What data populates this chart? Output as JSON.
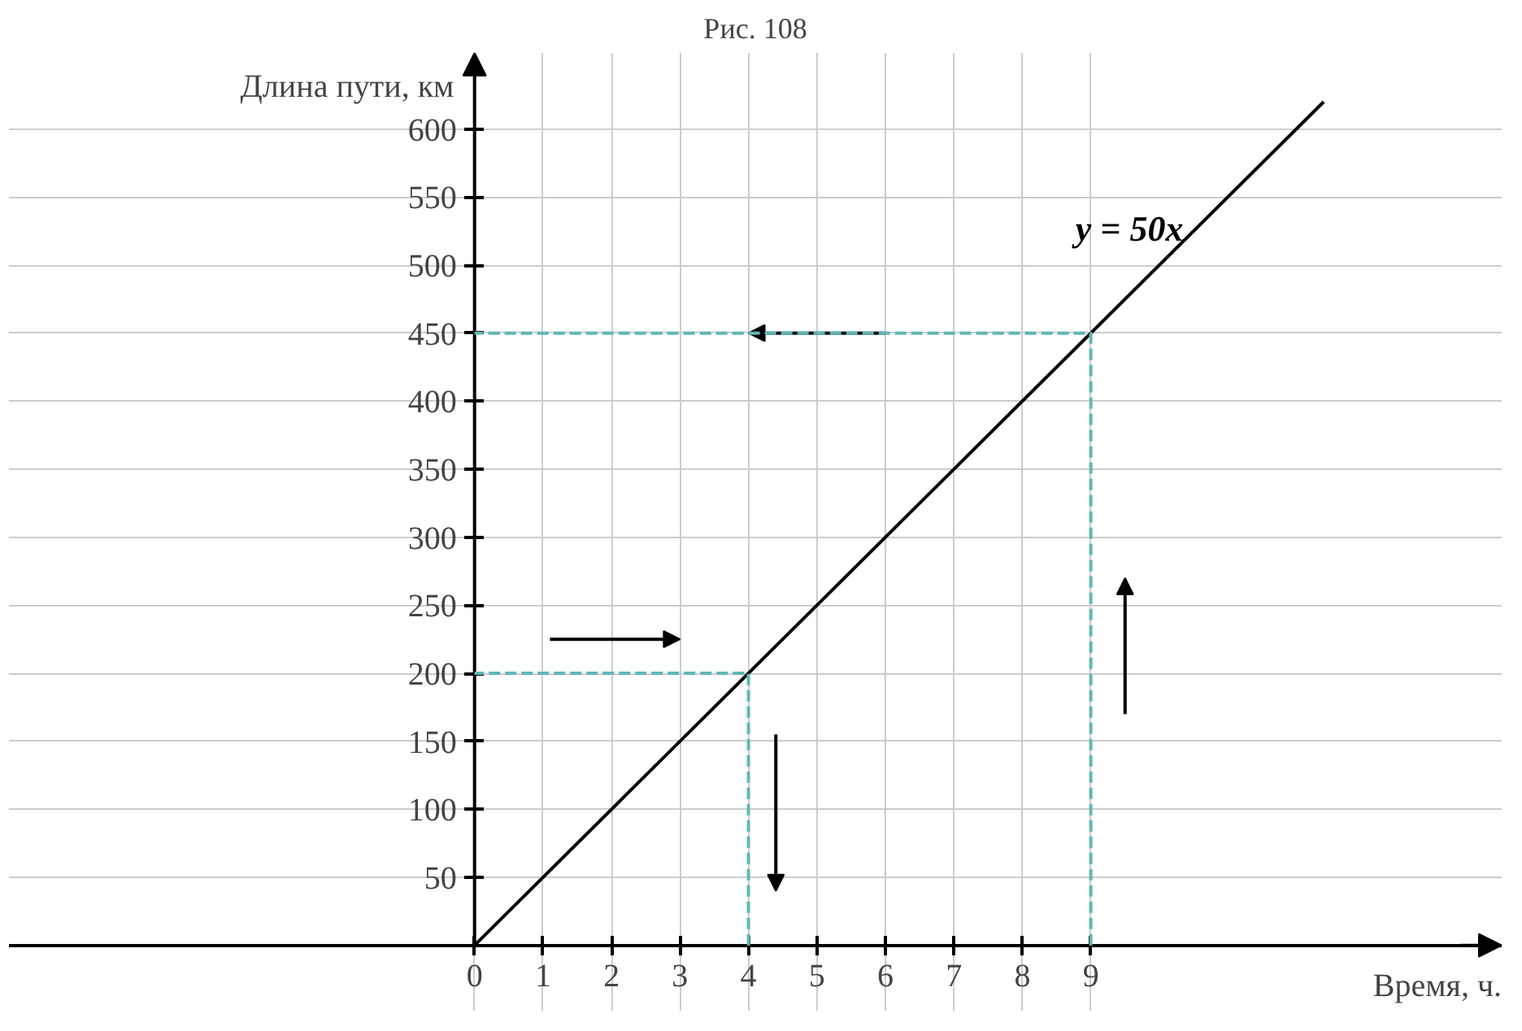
{
  "chart_data": {
    "type": "line",
    "title": "Рис. 108",
    "xlabel": "Время, ч.",
    "ylabel": "Длина пути, км",
    "xlim": [
      -6.8,
      15
    ],
    "ylim": [
      -48,
      656
    ],
    "xticks": [
      0,
      1,
      2,
      3,
      4,
      5,
      6,
      7,
      8,
      9
    ],
    "yticks": [
      50,
      100,
      150,
      200,
      250,
      300,
      350,
      400,
      450,
      500,
      550,
      600
    ],
    "grid": true,
    "series": [
      {
        "name": "y = 50x",
        "color": "#000000",
        "x": [
          0,
          12.4
        ],
        "values": [
          0,
          620
        ],
        "line_style": "solid"
      },
      {
        "color": "#5fb8b5",
        "x": [
          0,
          9,
          9
        ],
        "values": [
          450,
          450,
          0
        ],
        "line_style": "dashed"
      },
      {
        "color": "#5fb8b5",
        "x": [
          0,
          4,
          4
        ],
        "values": [
          200,
          200,
          0
        ],
        "line_style": "dashed"
      }
    ]
  }
}
